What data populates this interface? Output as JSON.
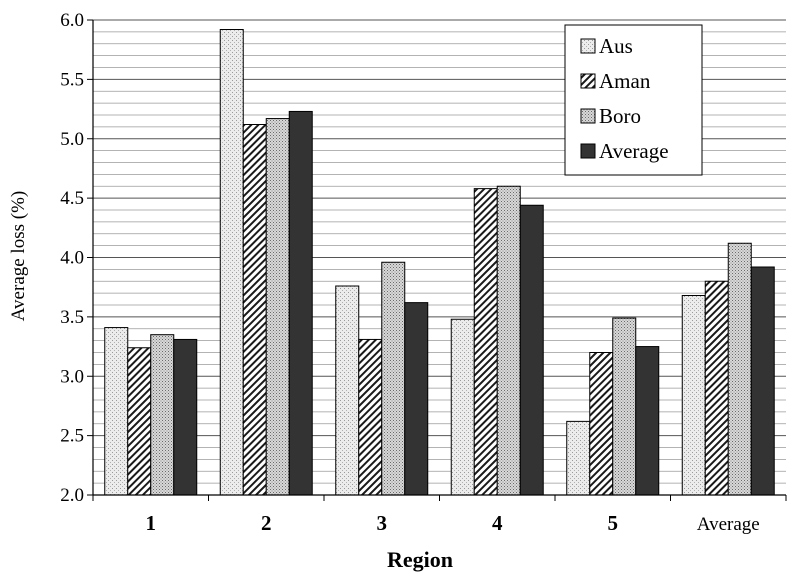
{
  "chart_data": {
    "type": "bar",
    "title": "",
    "xlabel": "Region",
    "ylabel": "Average loss  (%)",
    "ylim": [
      2.0,
      6.0
    ],
    "yticks": [
      "2.0",
      "2.5",
      "3.0",
      "3.5",
      "4.0",
      "4.5",
      "5.0",
      "5.5",
      "6.0"
    ],
    "minor_grid_step": 0.1,
    "grid": true,
    "legend_position": "top-right",
    "categories": [
      "1",
      "2",
      "3",
      "4",
      "5",
      "Average"
    ],
    "series": [
      {
        "name": "Aus",
        "values": [
          3.41,
          5.92,
          3.76,
          3.48,
          2.62,
          3.68
        ],
        "color": "#e6e6e6",
        "pattern": "light-stipple"
      },
      {
        "name": "Aman",
        "values": [
          3.24,
          5.12,
          3.31,
          4.58,
          3.2,
          3.8
        ],
        "color": "#ffffff",
        "pattern": "diagonal-hatch"
      },
      {
        "name": "Boro",
        "values": [
          3.35,
          5.17,
          3.96,
          4.6,
          3.49,
          4.12
        ],
        "color": "#cfcfcf",
        "pattern": "dense-stipple"
      },
      {
        "name": "Average",
        "values": [
          3.31,
          5.23,
          3.62,
          4.44,
          3.25,
          3.92
        ],
        "color": "#3a3a3a",
        "pattern": "solid"
      }
    ]
  }
}
